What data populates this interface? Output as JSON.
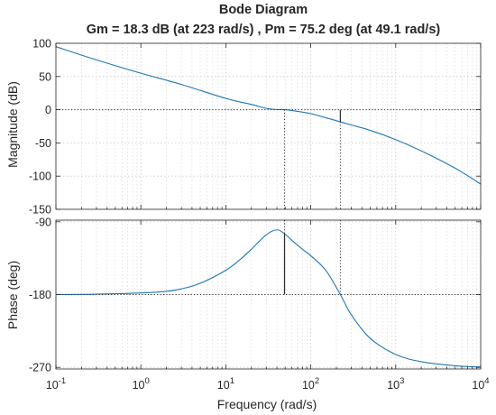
{
  "chart_data": {
    "type": "line",
    "title": "Bode Diagram",
    "subtitle": "Gm = 18.3 dB (at 223 rad/s) ,  Pm = 75.2 deg (at 49.1 rad/s)",
    "xlabel": "Frequency  (rad/s)",
    "x_scale": "log",
    "xlim": [
      0.1,
      10000
    ],
    "x_ticks": [
      0.1,
      1,
      10,
      100,
      1000,
      10000
    ],
    "x_tick_labels": [
      {
        "base": "10",
        "exp": "-1"
      },
      {
        "base": "10",
        "exp": "0"
      },
      {
        "base": "10",
        "exp": "1"
      },
      {
        "base": "10",
        "exp": "2"
      },
      {
        "base": "10",
        "exp": "3"
      },
      {
        "base": "10",
        "exp": "4"
      }
    ],
    "grid": true,
    "line_color": "#1f77b4",
    "margins": {
      "gain_margin_db": 18.3,
      "gain_crossover_frequency": 223,
      "phase_margin_deg": 75.2,
      "phase_crossover_frequency": 49.1
    },
    "subplots": [
      {
        "name": "magnitude",
        "ylabel": "Magnitude (dB)",
        "ylim": [
          -150,
          100
        ],
        "y_ticks": [
          100,
          50,
          0,
          -50,
          -100,
          -150
        ],
        "y_tick_labels": [
          "100",
          "50",
          "0",
          "-50",
          "-100",
          "-150"
        ],
        "x": [
          0.1,
          0.3,
          1,
          3,
          10,
          20,
          30,
          40,
          49.1,
          70,
          100,
          150,
          223,
          300,
          500,
          1000,
          2000,
          5000,
          10000
        ],
        "values": [
          95,
          75,
          55,
          38,
          17,
          8,
          2,
          0.3,
          0,
          -2.5,
          -6,
          -12,
          -18.3,
          -23,
          -31,
          -45,
          -62,
          -88,
          -112
        ]
      },
      {
        "name": "phase",
        "ylabel": "Phase (deg)",
        "ylim": [
          -272,
          -88
        ],
        "y_ticks": [
          -90,
          -180,
          -270
        ],
        "y_tick_labels": [
          "-90",
          "-180",
          "-270"
        ],
        "x": [
          0.1,
          0.3,
          1,
          2,
          3,
          5,
          10,
          15,
          20,
          30,
          40,
          49.1,
          60,
          80,
          100,
          150,
          223,
          300,
          500,
          1000,
          2000,
          5000,
          10000
        ],
        "values": [
          -180,
          -179.5,
          -178,
          -176,
          -173,
          -166,
          -150,
          -136,
          -124,
          -106,
          -100,
          -104.8,
          -113,
          -124,
          -132,
          -150,
          -180,
          -205,
          -234,
          -254,
          -263,
          -268,
          -269.5
        ]
      }
    ]
  }
}
